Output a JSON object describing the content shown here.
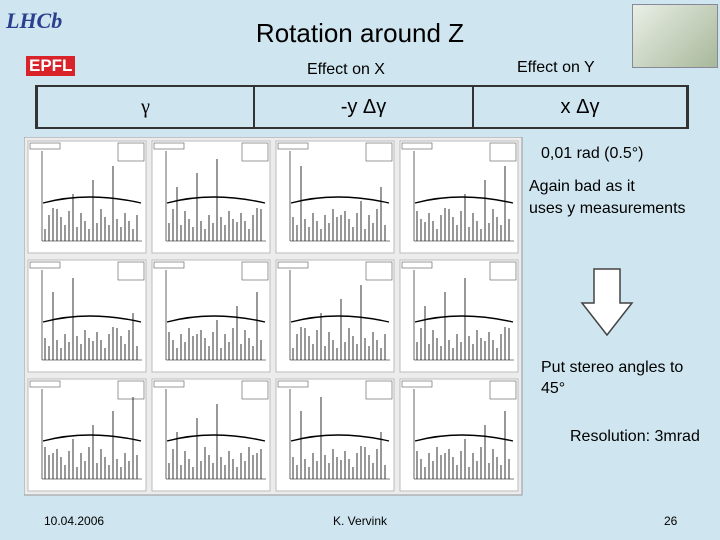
{
  "logos": {
    "top": "LHCb",
    "bottom": "EPFL"
  },
  "title": "Rotation around Z",
  "table": {
    "header": [
      "Effect on X",
      "Effect on Y"
    ],
    "row": [
      "γ",
      "-y Δγ",
      "x Δγ"
    ]
  },
  "notes": [
    "0,01 rad (0.5°)",
    [
      "Again bad as it",
      "uses y measurements"
    ],
    [
      "Put stereo angles to",
      "45°"
    ],
    "Resolution: 3mrad"
  ],
  "footer": {
    "date": "10.04.2006",
    "author": "K. Vervink",
    "page": "26"
  }
}
